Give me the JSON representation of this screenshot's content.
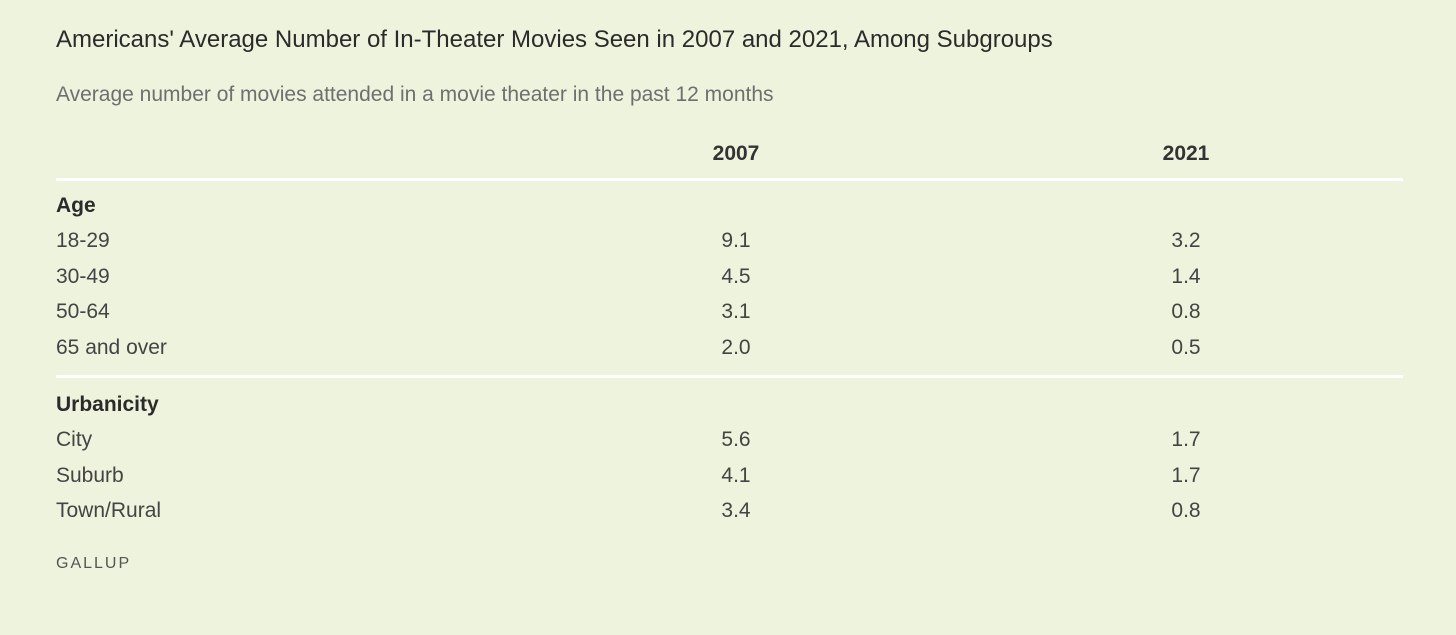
{
  "title": "Americans' Average Number of In-Theater Movies Seen in 2007 and 2021, Among Subgroups",
  "subtitle": "Average number of movies attended in a movie theater in the past 12 months",
  "columns": [
    "2007",
    "2021"
  ],
  "groups": [
    {
      "name": "Age",
      "rows": [
        {
          "label": "18-29",
          "v2007": "9.1",
          "v2021": "3.2"
        },
        {
          "label": "30-49",
          "v2007": "4.5",
          "v2021": "1.4"
        },
        {
          "label": "50-64",
          "v2007": "3.1",
          "v2021": "0.8"
        },
        {
          "label": "65 and over",
          "v2007": "2.0",
          "v2021": "0.5"
        }
      ]
    },
    {
      "name": "Urbanicity",
      "rows": [
        {
          "label": "City",
          "v2007": "5.6",
          "v2021": "1.7"
        },
        {
          "label": "Suburb",
          "v2007": "4.1",
          "v2021": "1.7"
        },
        {
          "label": "Town/Rural",
          "v2007": "3.4",
          "v2021": "0.8"
        }
      ]
    }
  ],
  "source": "GALLUP",
  "colors": {
    "background": "#edf3dc",
    "divider": "#ffffff"
  }
}
